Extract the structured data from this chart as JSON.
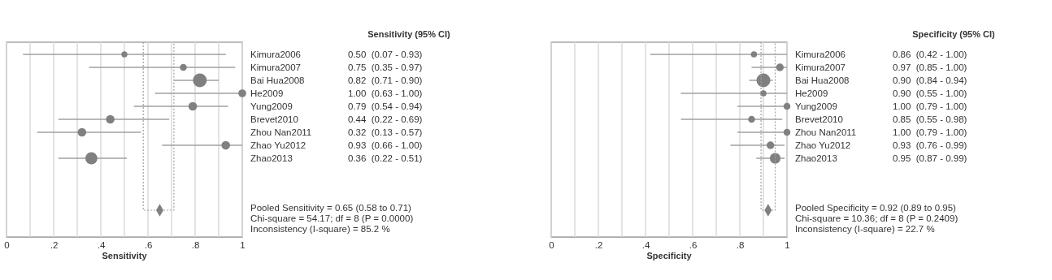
{
  "chart_data": [
    {
      "type": "bubble",
      "orientation": "horizontal",
      "xlabel": "Sensitivity",
      "xlim": [
        0,
        1
      ],
      "grid": "x",
      "xticks": [
        {
          "value": 0,
          "label": "0"
        },
        {
          "value": 0.1,
          "label": null
        },
        {
          "value": 0.2,
          "label": ".2"
        },
        {
          "value": 0.3,
          "label": null
        },
        {
          "value": 0.4,
          "label": ".4"
        },
        {
          "value": 0.5,
          "label": null
        },
        {
          "value": 0.6,
          "label": ".6"
        },
        {
          "value": 0.7,
          "label": null
        },
        {
          "value": 0.8,
          "label": ".8"
        },
        {
          "value": 0.9,
          "label": null
        },
        {
          "value": 1,
          "label": "1"
        }
      ],
      "categories": [
        "Kimura2006",
        "Kimura2007",
        "Bai Hua2008",
        "He2009",
        "Yung2009",
        "Brevet2010",
        "Zhou Nan2011",
        "Zhao Yu2012",
        "Zhao2013",
        null,
        null,
        null,
        null
      ],
      "series": [
        {
          "color": "#808080",
          "values": [
            0.5,
            0.75,
            0.82,
            1.0,
            0.79,
            0.44,
            0.32,
            0.93,
            0.36,
            null,
            null,
            null,
            null
          ],
          "errors": [
            [
              0.07,
              0.93
            ],
            [
              0.35,
              0.97
            ],
            [
              0.71,
              0.9
            ],
            [
              0.63,
              1.0
            ],
            [
              0.54,
              0.94
            ],
            [
              0.22,
              0.69
            ],
            [
              0.13,
              0.57
            ],
            [
              0.66,
              1.0
            ],
            [
              0.22,
              0.51
            ],
            null,
            null,
            null,
            null
          ],
          "sizes": [
            0.19,
            0.25,
            1,
            0.32,
            0.39,
            0.39,
            0.39,
            0.39,
            0.77,
            null,
            null,
            null,
            null
          ],
          "value_labels": [
            "0.50  (0.07 - 0.93)",
            "0.75  (0.35 - 0.97)",
            "0.82  (0.71 - 0.90)",
            "1.00  (0.63 - 1.00)",
            "0.79  (0.54 - 0.94)",
            "0.44  (0.22 - 0.69)",
            "0.32  (0.13 - 0.57)",
            "0.93  (0.66 - 1.00)",
            "0.36  (0.22 - 0.51)",
            null,
            null,
            null,
            null
          ]
        },
        {
          "type": "scatter",
          "marker": "diamond",
          "line_style": "dotted",
          "color": "#808080",
          "values": [
            null,
            null,
            null,
            null,
            null,
            null,
            null,
            null,
            null,
            null,
            null,
            null,
            0.65
          ],
          "errors": [
            null,
            null,
            null,
            null,
            null,
            null,
            null,
            null,
            null,
            null,
            null,
            null,
            [
              0.58,
              0.71
            ]
          ]
        }
      ],
      "annotations": [
        "Sensitivity (95% CI)",
        "Pooled Sensitivity = 0.65 (0.58 to 0.71)",
        "Chi-square = 54.17; df =  8 (P = 0.0000)",
        "Inconsistency (I-square) = 85.2 %"
      ]
    },
    {
      "type": "bubble",
      "orientation": "horizontal",
      "xlabel": "Specificity",
      "xlim": [
        0,
        1
      ],
      "grid": "x",
      "xticks": [
        {
          "value": 0,
          "label": "0"
        },
        {
          "value": 0.1,
          "label": null
        },
        {
          "value": 0.2,
          "label": ".2"
        },
        {
          "value": 0.3,
          "label": null
        },
        {
          "value": 0.4,
          "label": ".4"
        },
        {
          "value": 0.5,
          "label": null
        },
        {
          "value": 0.6,
          "label": ".6"
        },
        {
          "value": 0.7,
          "label": null
        },
        {
          "value": 0.8,
          "label": ".8"
        },
        {
          "value": 0.9,
          "label": null
        },
        {
          "value": 1,
          "label": "1"
        }
      ],
      "categories": [
        "Kimura2006",
        "Kimura2007",
        "Bai Hua2008",
        "He2009",
        "Yung2009",
        "Brevet2010",
        "Zhou Nan2011",
        "Zhao Yu2012",
        "Zhao2013",
        null,
        null,
        null,
        null
      ],
      "series": [
        {
          "color": "#808080",
          "values": [
            0.86,
            0.97,
            0.9,
            0.9,
            1.0,
            0.85,
            1.0,
            0.93,
            0.95,
            null,
            null,
            null,
            null
          ],
          "errors": [
            [
              0.42,
              1.0
            ],
            [
              0.85,
              1.0
            ],
            [
              0.84,
              0.94
            ],
            [
              0.55,
              1.0
            ],
            [
              0.79,
              1.0
            ],
            [
              0.55,
              0.98
            ],
            [
              0.79,
              1.0
            ],
            [
              0.76,
              0.99
            ],
            [
              0.87,
              0.99
            ],
            null,
            null,
            null,
            null
          ],
          "sizes": [
            0.2,
            0.31,
            1,
            0.2,
            0.25,
            0.25,
            0.25,
            0.31,
            0.6,
            null,
            null,
            null,
            null
          ],
          "value_labels": [
            "0.86  (0.42 - 1.00)",
            "0.97  (0.85 - 1.00)",
            "0.90  (0.84 - 0.94)",
            "0.90  (0.55 - 1.00)",
            "1.00  (0.79 - 1.00)",
            "0.85  (0.55 - 0.98)",
            "1.00  (0.79 - 1.00)",
            "0.93  (0.76 - 0.99)",
            "0.95  (0.87 - 0.99)",
            null,
            null,
            null,
            null
          ]
        },
        {
          "type": "scatter",
          "marker": "diamond",
          "line_style": "dotted",
          "color": "#808080",
          "values": [
            null,
            null,
            null,
            null,
            null,
            null,
            null,
            null,
            null,
            null,
            null,
            null,
            0.92
          ],
          "errors": [
            null,
            null,
            null,
            null,
            null,
            null,
            null,
            null,
            null,
            null,
            null,
            null,
            [
              0.89,
              0.95
            ]
          ]
        }
      ],
      "annotations": [
        "Specificity (95% CI)",
        "Pooled Specificity = 0.92 (0.89 to 0.95)",
        "Chi-square = 10.36; df =  8 (P = 0.2409)",
        "Inconsistency (I-square) = 22.7 %"
      ]
    }
  ]
}
